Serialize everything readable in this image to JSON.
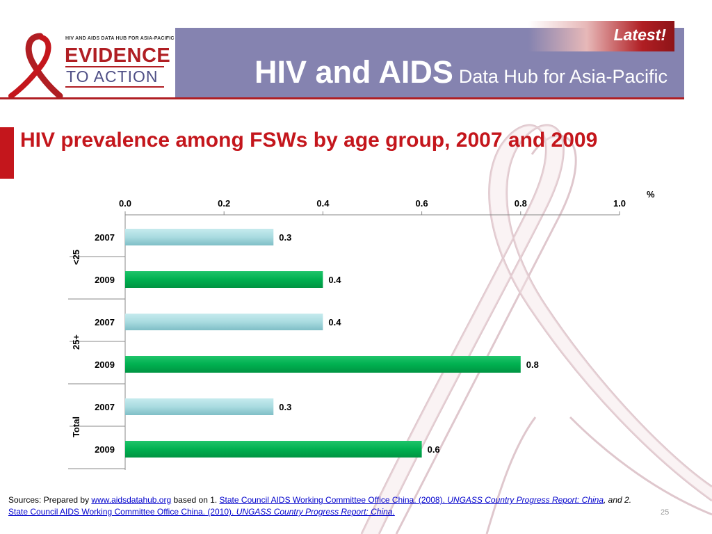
{
  "header": {
    "logo_top": "HIV AND AIDS DATA HUB FOR ASIA-PACIFIC",
    "logo_line1": "EVIDENCE",
    "logo_line2": "TO ACTION",
    "title_big": "HIV and AIDS",
    "title_small": "Data Hub for Asia-Pacific",
    "latest": "Latest!"
  },
  "slide_title": "HIV prevalence among FSWs by age group, 2007 and 2009",
  "colors": {
    "header_bg": "#8583b0",
    "accent_red": "#c4161c",
    "bar_2007": "#a9dbe0",
    "bar_2009": "#00b050"
  },
  "chart_data": {
    "type": "bar",
    "orientation": "horizontal",
    "unit": "%",
    "xlim": [
      0,
      1.0
    ],
    "ticks": [
      "0.0",
      "0.2",
      "0.4",
      "0.6",
      "0.8",
      "1.0"
    ],
    "groups": [
      {
        "name": "<25",
        "bars": [
          {
            "label": "2007",
            "value": 0.3,
            "display": "0.3"
          },
          {
            "label": "2009",
            "value": 0.4,
            "display": "0.4"
          }
        ]
      },
      {
        "name": "25+",
        "bars": [
          {
            "label": "2007",
            "value": 0.4,
            "display": "0.4"
          },
          {
            "label": "2009",
            "value": 0.8,
            "display": "0.8"
          }
        ]
      },
      {
        "name": "Total",
        "bars": [
          {
            "label": "2007",
            "value": 0.3,
            "display": "0.3"
          },
          {
            "label": "2009",
            "value": 0.6,
            "display": "0.6"
          }
        ]
      }
    ]
  },
  "sources": {
    "prefix": "Sources: Prepared by ",
    "link1": "www.aidsdatahub.org",
    "mid1": "  based on 1. ",
    "link2": "State Council AIDS Working Committee Office China. (2008). ",
    "link2_italic": "UNGASS Country Progress Report: China",
    "mid2": ",  and 2. ",
    "link3": "State Council AIDS Working Committee Office China. (2010). ",
    "link3_italic": "UNGASS Country Progress Report: China."
  },
  "page_number": "25"
}
